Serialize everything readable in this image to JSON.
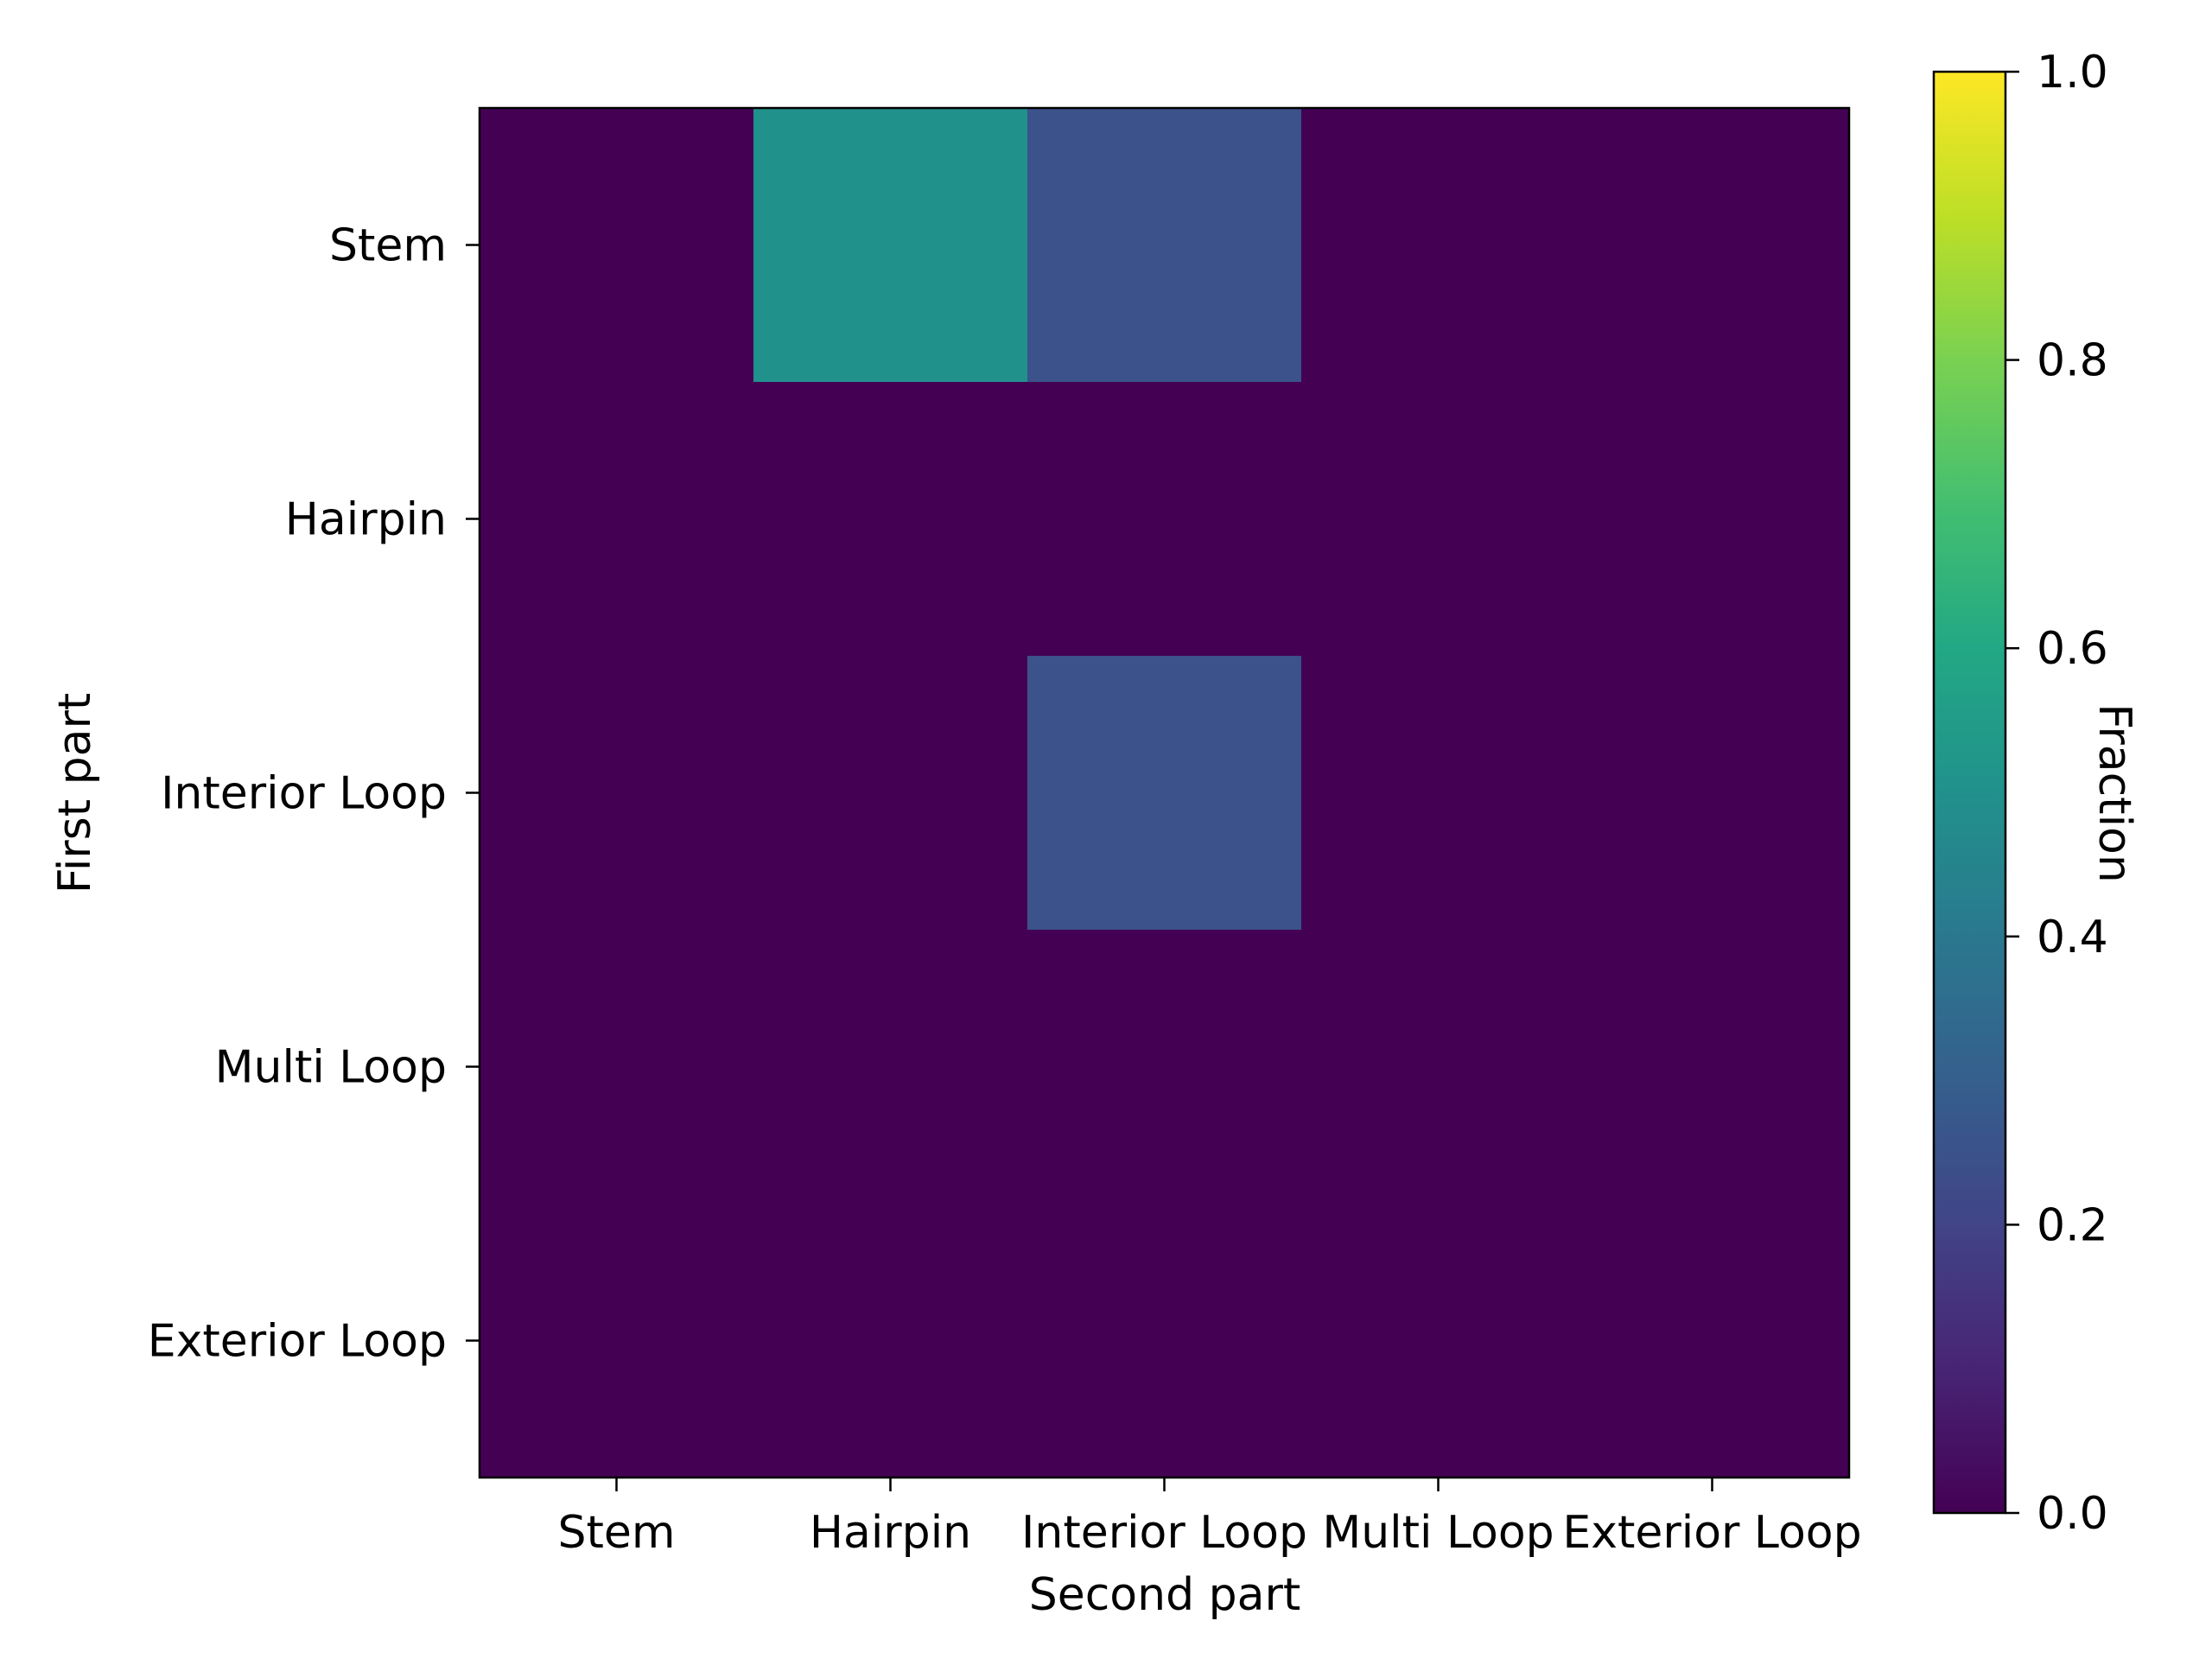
{
  "chart_data": {
    "type": "heatmap",
    "title": "",
    "xlabel": "Second part",
    "ylabel": "First part",
    "x_categories": [
      "Stem",
      "Hairpin",
      "Interior Loop",
      "Multi Loop",
      "Exterior Loop"
    ],
    "y_categories": [
      "Stem",
      "Hairpin",
      "Interior Loop",
      "Multi Loop",
      "Exterior Loop"
    ],
    "values": [
      [
        0.0,
        0.5,
        0.25,
        0.0,
        0.0
      ],
      [
        0.0,
        0.0,
        0.0,
        0.0,
        0.0
      ],
      [
        0.0,
        0.0,
        0.25,
        0.0,
        0.0
      ],
      [
        0.0,
        0.0,
        0.0,
        0.0,
        0.0
      ],
      [
        0.0,
        0.0,
        0.0,
        0.0,
        0.0
      ]
    ],
    "colormap": "viridis",
    "colorbar": {
      "label": "Fraction",
      "range": [
        0,
        1
      ],
      "ticks": [
        "0.0",
        "0.2",
        "0.4",
        "0.6",
        "0.8",
        "1.0"
      ]
    },
    "grid": false
  }
}
